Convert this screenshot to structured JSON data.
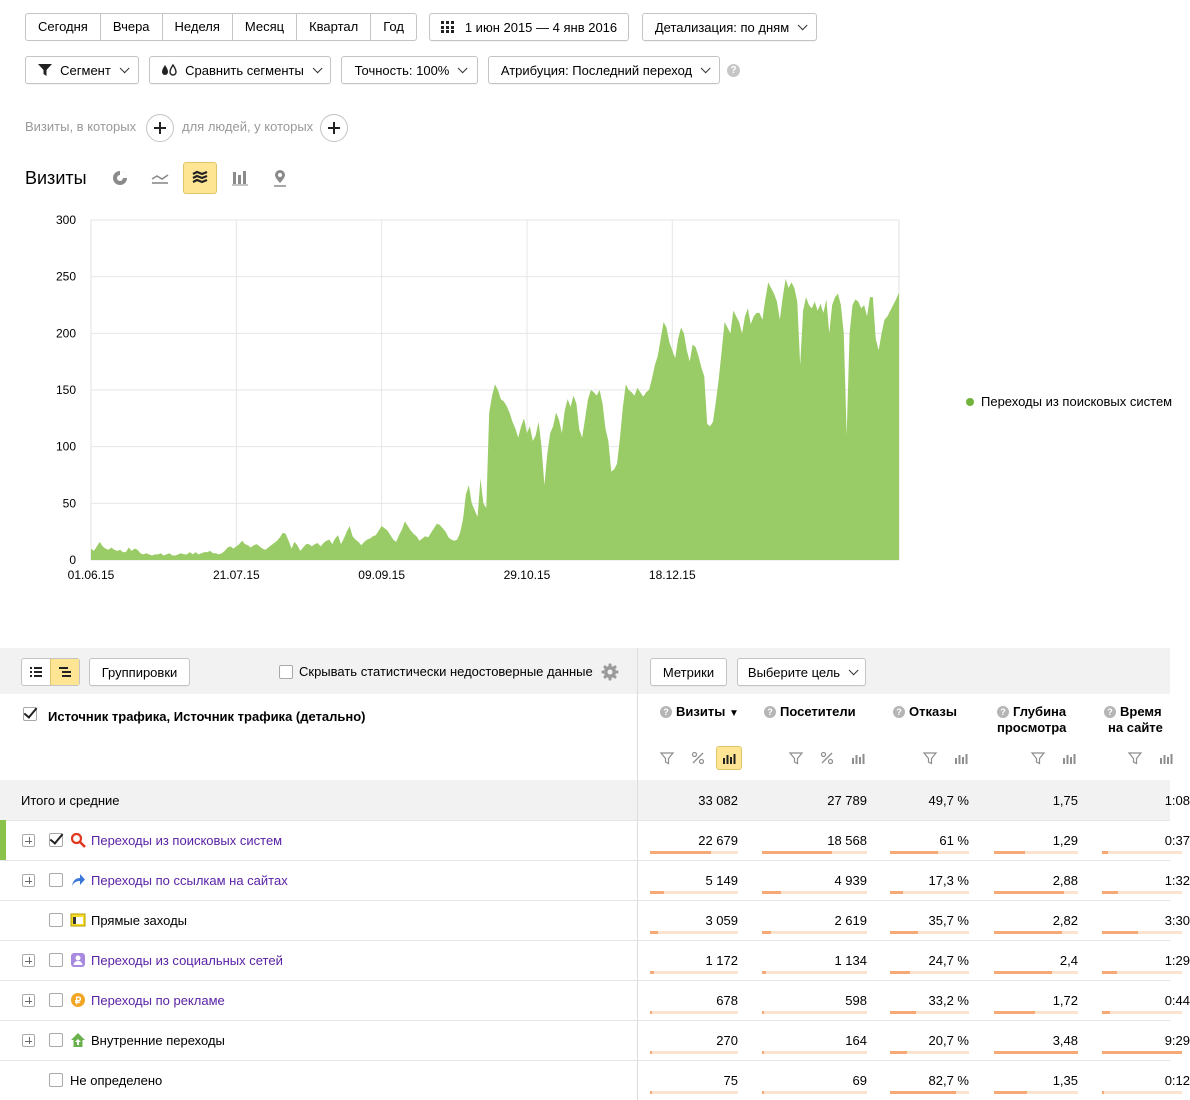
{
  "period_tabs": [
    "Сегодня",
    "Вчера",
    "Неделя",
    "Месяц",
    "Квартал",
    "Год"
  ],
  "date_range": "1 июн 2015 — 4 янв 2016",
  "detail": "Детализация: по дням",
  "segment": "Сегмент",
  "compare": "Сравнить сегменты",
  "accuracy": "Точность: 100%",
  "attribution": "Атрибуция: Последний переход",
  "visits_hint": "Визиты, в которых",
  "people_hint": "для людей, у которых",
  "chart_title": "Визиты",
  "colors": {
    "series": "#99cc66",
    "selected_tab": "#fde594",
    "link": "#5a22a6",
    "bar": "#f5a977"
  },
  "chart_data": {
    "type": "area",
    "x_ticks": [
      "01.06.15",
      "21.07.15",
      "09.09.15",
      "29.10.15",
      "18.12.15"
    ],
    "ylim": [
      0,
      300
    ],
    "y_ticks": [
      0,
      50,
      100,
      150,
      200,
      250,
      300
    ],
    "grid": true,
    "legend_position": "right",
    "series": [
      {
        "name": "Переходы из поисковых систем",
        "color": "#99cc66",
        "values": [
          10,
          8,
          12,
          16,
          12,
          10,
          9,
          11,
          9,
          8,
          9,
          7,
          7,
          11,
          8,
          10,
          9,
          6,
          5,
          6,
          5,
          4,
          5,
          5,
          6,
          4,
          5,
          6,
          4,
          4,
          5,
          6,
          5,
          5,
          7,
          5,
          7,
          5,
          6,
          7,
          7,
          8,
          6,
          6,
          5,
          6,
          8,
          11,
          12,
          10,
          12,
          14,
          17,
          14,
          13,
          11,
          13,
          14,
          12,
          10,
          9,
          11,
          13,
          15,
          17,
          20,
          24,
          23,
          17,
          10,
          16,
          13,
          8,
          11,
          14,
          14,
          12,
          14,
          15,
          12,
          15,
          17,
          18,
          14,
          19,
          22,
          14,
          19,
          25,
          30,
          21,
          18,
          16,
          13,
          16,
          18,
          19,
          21,
          22,
          26,
          30,
          28,
          26,
          22,
          18,
          16,
          22,
          27,
          34,
          30,
          26,
          23,
          21,
          17,
          19,
          21,
          20,
          24,
          28,
          32,
          31,
          28,
          25,
          20,
          18,
          17,
          18,
          24,
          36,
          58,
          66,
          50,
          44,
          38,
          72,
          50,
          46,
          130,
          145,
          155,
          150,
          142,
          140,
          136,
          130,
          122,
          116,
          108,
          118,
          125,
          112,
          118,
          105,
          110,
          122,
          100,
          66,
          94,
          112,
          118,
          130,
          124,
          112,
          132,
          142,
          135,
          145,
          138,
          115,
          108,
          125,
          142,
          150,
          148,
          145,
          150,
          138,
          116,
          105,
          78,
          80,
          85,
          108,
          135,
          155,
          150,
          148,
          145,
          152,
          148,
          144,
          148,
          150,
          160,
          172,
          180,
          195,
          210,
          205,
          192,
          185,
          178,
          195,
          205,
          200,
          185,
          175,
          190,
          188,
          180,
          170,
          162,
          120,
          118,
          122,
          140,
          160,
          185,
          210,
          205,
          200,
          220,
          215,
          210,
          200,
          215,
          222,
          208,
          215,
          218,
          218,
          212,
          230,
          245,
          240,
          235,
          228,
          212,
          232,
          248,
          240,
          245,
          240,
          228,
          172,
          220,
          232,
          225,
          222,
          228,
          220,
          226,
          218,
          230,
          200,
          225,
          232,
          235,
          225,
          200,
          110,
          200,
          225,
          230,
          228,
          222,
          225,
          215,
          232,
          232,
          195,
          185,
          200,
          212,
          215,
          220,
          225,
          230,
          236
        ]
      }
    ]
  },
  "toolbar": {
    "groupings": "Группировки",
    "hide_label": "Скрывать статистически недостоверные данные",
    "metrics": "Метрики",
    "goal": "Выберите цель"
  },
  "dims_header": "Источник трафика, Источник трафика (детально)",
  "metrics": [
    {
      "label": "Визиты",
      "sort": "▼"
    },
    {
      "label": "Посетители"
    },
    {
      "label": "Отказы"
    },
    {
      "label": "Глубина",
      "label2": "просмотра"
    },
    {
      "label": "Время",
      "label2": "на сайте"
    }
  ],
  "totals": {
    "label": "Итого и средние",
    "values": [
      "33 082",
      "27 789",
      "49,7 %",
      "1,75",
      "1:08"
    ]
  },
  "rows": [
    {
      "label": "Переходы из поисковых систем",
      "icon": "search-icon",
      "expand": true,
      "checked": true,
      "link": true,
      "values": [
        "22 679",
        "18 568",
        "61 %",
        "1,29",
        "0:37"
      ],
      "fill": [
        0.69,
        0.67,
        0.61,
        0.37,
        0.08
      ]
    },
    {
      "label": "Переходы по ссылкам на сайтах",
      "icon": "arrow-link-icon",
      "expand": true,
      "checked": false,
      "link": true,
      "values": [
        "5 149",
        "4 939",
        "17,3 %",
        "2,88",
        "1:32"
      ],
      "fill": [
        0.16,
        0.18,
        0.17,
        0.83,
        0.2
      ]
    },
    {
      "label": "Прямые заходы",
      "icon": "window-icon",
      "expand": false,
      "checked": false,
      "link": false,
      "values": [
        "3 059",
        "2 619",
        "35,7 %",
        "2,82",
        "3:30"
      ],
      "fill": [
        0.09,
        0.09,
        0.36,
        0.81,
        0.45
      ]
    },
    {
      "label": "Переходы из социальных сетей",
      "icon": "social-icon",
      "expand": true,
      "checked": false,
      "link": true,
      "values": [
        "1 172",
        "1 134",
        "24,7 %",
        "2,4",
        "1:29"
      ],
      "fill": [
        0.04,
        0.04,
        0.25,
        0.69,
        0.19
      ]
    },
    {
      "label": "Переходы по рекламе",
      "icon": "ad-coin-icon",
      "expand": true,
      "checked": false,
      "link": true,
      "values": [
        "678",
        "598",
        "33,2 %",
        "1,72",
        "0:44"
      ],
      "fill": [
        0.02,
        0.02,
        0.33,
        0.49,
        0.1
      ]
    },
    {
      "label": "Внутренние переходы",
      "icon": "internal-house-icon",
      "expand": true,
      "checked": false,
      "link": false,
      "values": [
        "270",
        "164",
        "20,7 %",
        "3,48",
        "9:29"
      ],
      "fill": [
        0.01,
        0.01,
        0.21,
        1.0,
        1.0
      ]
    },
    {
      "label": "Не определено",
      "icon": "",
      "expand": false,
      "checked": false,
      "link": false,
      "values": [
        "75",
        "69",
        "82,7 %",
        "1,35",
        "0:12"
      ],
      "fill": [
        0.0,
        0.0,
        0.83,
        0.39,
        0.03
      ]
    }
  ]
}
